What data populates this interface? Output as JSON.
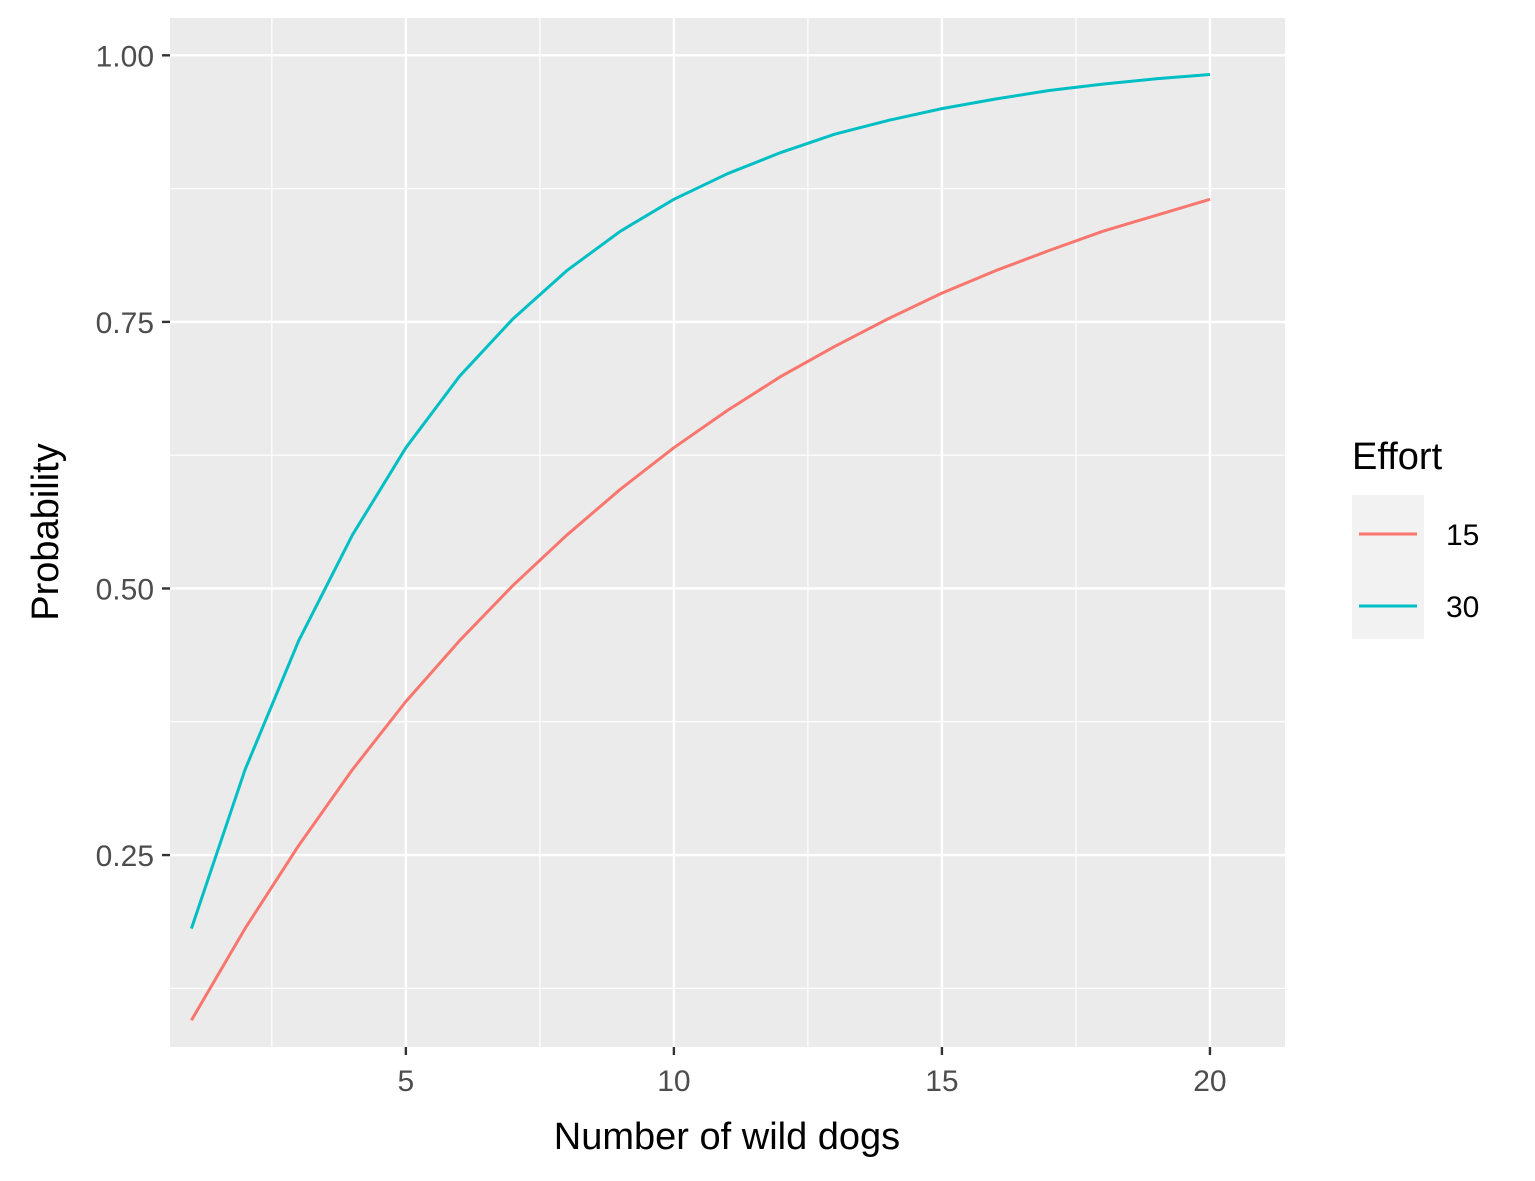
{
  "chart_data": {
    "type": "line",
    "title": "",
    "xlabel": "Number of wild dogs",
    "ylabel": "Probability",
    "xlim": [
      0.6,
      21.4
    ],
    "ylim": [
      0.07,
      1.035
    ],
    "x_ticks": [
      5,
      10,
      15,
      20
    ],
    "x_tick_labels": [
      "5",
      "10",
      "15",
      "20"
    ],
    "y_ticks": [
      0.25,
      0.5,
      0.75,
      1.0
    ],
    "y_tick_labels": [
      "0.25",
      "0.50",
      "0.75",
      "1.00"
    ],
    "grid": true,
    "legend": {
      "title": "Effort",
      "position": "right"
    },
    "x": [
      1,
      2,
      3,
      4,
      5,
      6,
      7,
      8,
      9,
      10,
      11,
      12,
      13,
      14,
      15,
      16,
      17,
      18,
      19,
      20
    ],
    "series": [
      {
        "name": "15",
        "color": "#F8766D",
        "values": [
          0.095,
          0.181,
          0.259,
          0.33,
          0.394,
          0.451,
          0.503,
          0.55,
          0.593,
          0.632,
          0.667,
          0.699,
          0.727,
          0.753,
          0.777,
          0.798,
          0.817,
          0.835,
          0.85,
          0.865
        ]
      },
      {
        "name": "30",
        "color": "#00BFC4",
        "values": [
          0.181,
          0.33,
          0.451,
          0.55,
          0.632,
          0.699,
          0.753,
          0.798,
          0.835,
          0.865,
          0.889,
          0.909,
          0.926,
          0.939,
          0.95,
          0.959,
          0.967,
          0.973,
          0.978,
          0.982
        ]
      }
    ]
  }
}
